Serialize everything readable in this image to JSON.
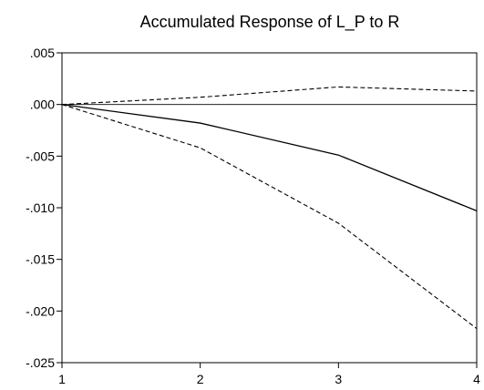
{
  "chart_data": {
    "type": "line",
    "title": "Accumulated Response of L_P to R",
    "xlabel": "",
    "ylabel": "",
    "x": [
      1,
      2,
      3,
      4
    ],
    "xlim": [
      1,
      4
    ],
    "ylim": [
      -0.025,
      0.005
    ],
    "x_ticks": [
      1,
      2,
      3,
      4
    ],
    "x_tick_labels": [
      "1",
      "2",
      "3",
      "4"
    ],
    "y_ticks": [
      0.005,
      0.0,
      -0.005,
      -0.01,
      -0.015,
      -0.02,
      -0.025
    ],
    "y_tick_labels": [
      ".005",
      ".000",
      "-.005",
      "-.010",
      "-.015",
      "-.020",
      "-.025"
    ],
    "zero_line": true,
    "grid": false,
    "legend": "none",
    "series": [
      {
        "style": "solid",
        "color": "#000000",
        "values": [
          0.0,
          -0.0018,
          -0.0049,
          -0.0103
        ]
      },
      {
        "style": "dashed",
        "color": "#000000",
        "values": [
          0.0,
          0.0007,
          0.0017,
          0.0013
        ]
      },
      {
        "style": "dashed",
        "color": "#000000",
        "values": [
          0.0,
          -0.0042,
          -0.0115,
          -0.0217
        ]
      }
    ]
  }
}
